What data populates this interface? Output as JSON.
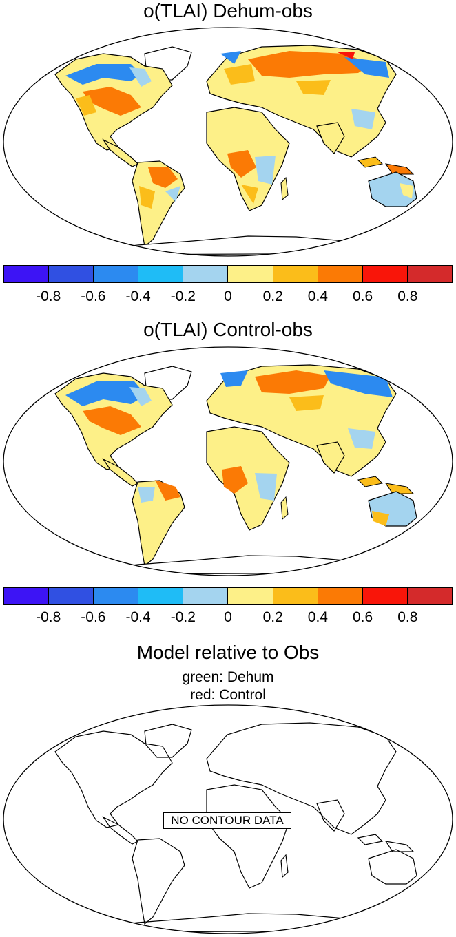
{
  "panels": [
    {
      "title": "o(TLAI) Dehum-obs",
      "colorbar": {
        "colors": [
          "#3d14f5",
          "#3050e2",
          "#2c8af0",
          "#1fbcf6",
          "#a4d4ef",
          "#fdf088",
          "#fbbd1a",
          "#fb7a05",
          "#f91509",
          "#d42a2b"
        ],
        "tick_labels": [
          "-0.8",
          "-0.6",
          "-0.4",
          "-0.2",
          "0",
          "0.2",
          "0.4",
          "0.6",
          "0.8"
        ]
      }
    },
    {
      "title": "o(TLAI) Control-obs",
      "colorbar": {
        "colors": [
          "#3d14f5",
          "#3050e2",
          "#2c8af0",
          "#1fbcf6",
          "#a4d4ef",
          "#fdf088",
          "#fbbd1a",
          "#fb7a05",
          "#f91509",
          "#d42a2b"
        ],
        "tick_labels": [
          "-0.8",
          "-0.6",
          "-0.4",
          "-0.2",
          "0",
          "0.2",
          "0.4",
          "0.6",
          "0.8"
        ]
      }
    },
    {
      "title": "Model relative to Obs",
      "subtitle_1": "green: Dehum",
      "subtitle_2": "red: Control",
      "message": "NO CONTOUR DATA"
    }
  ]
}
